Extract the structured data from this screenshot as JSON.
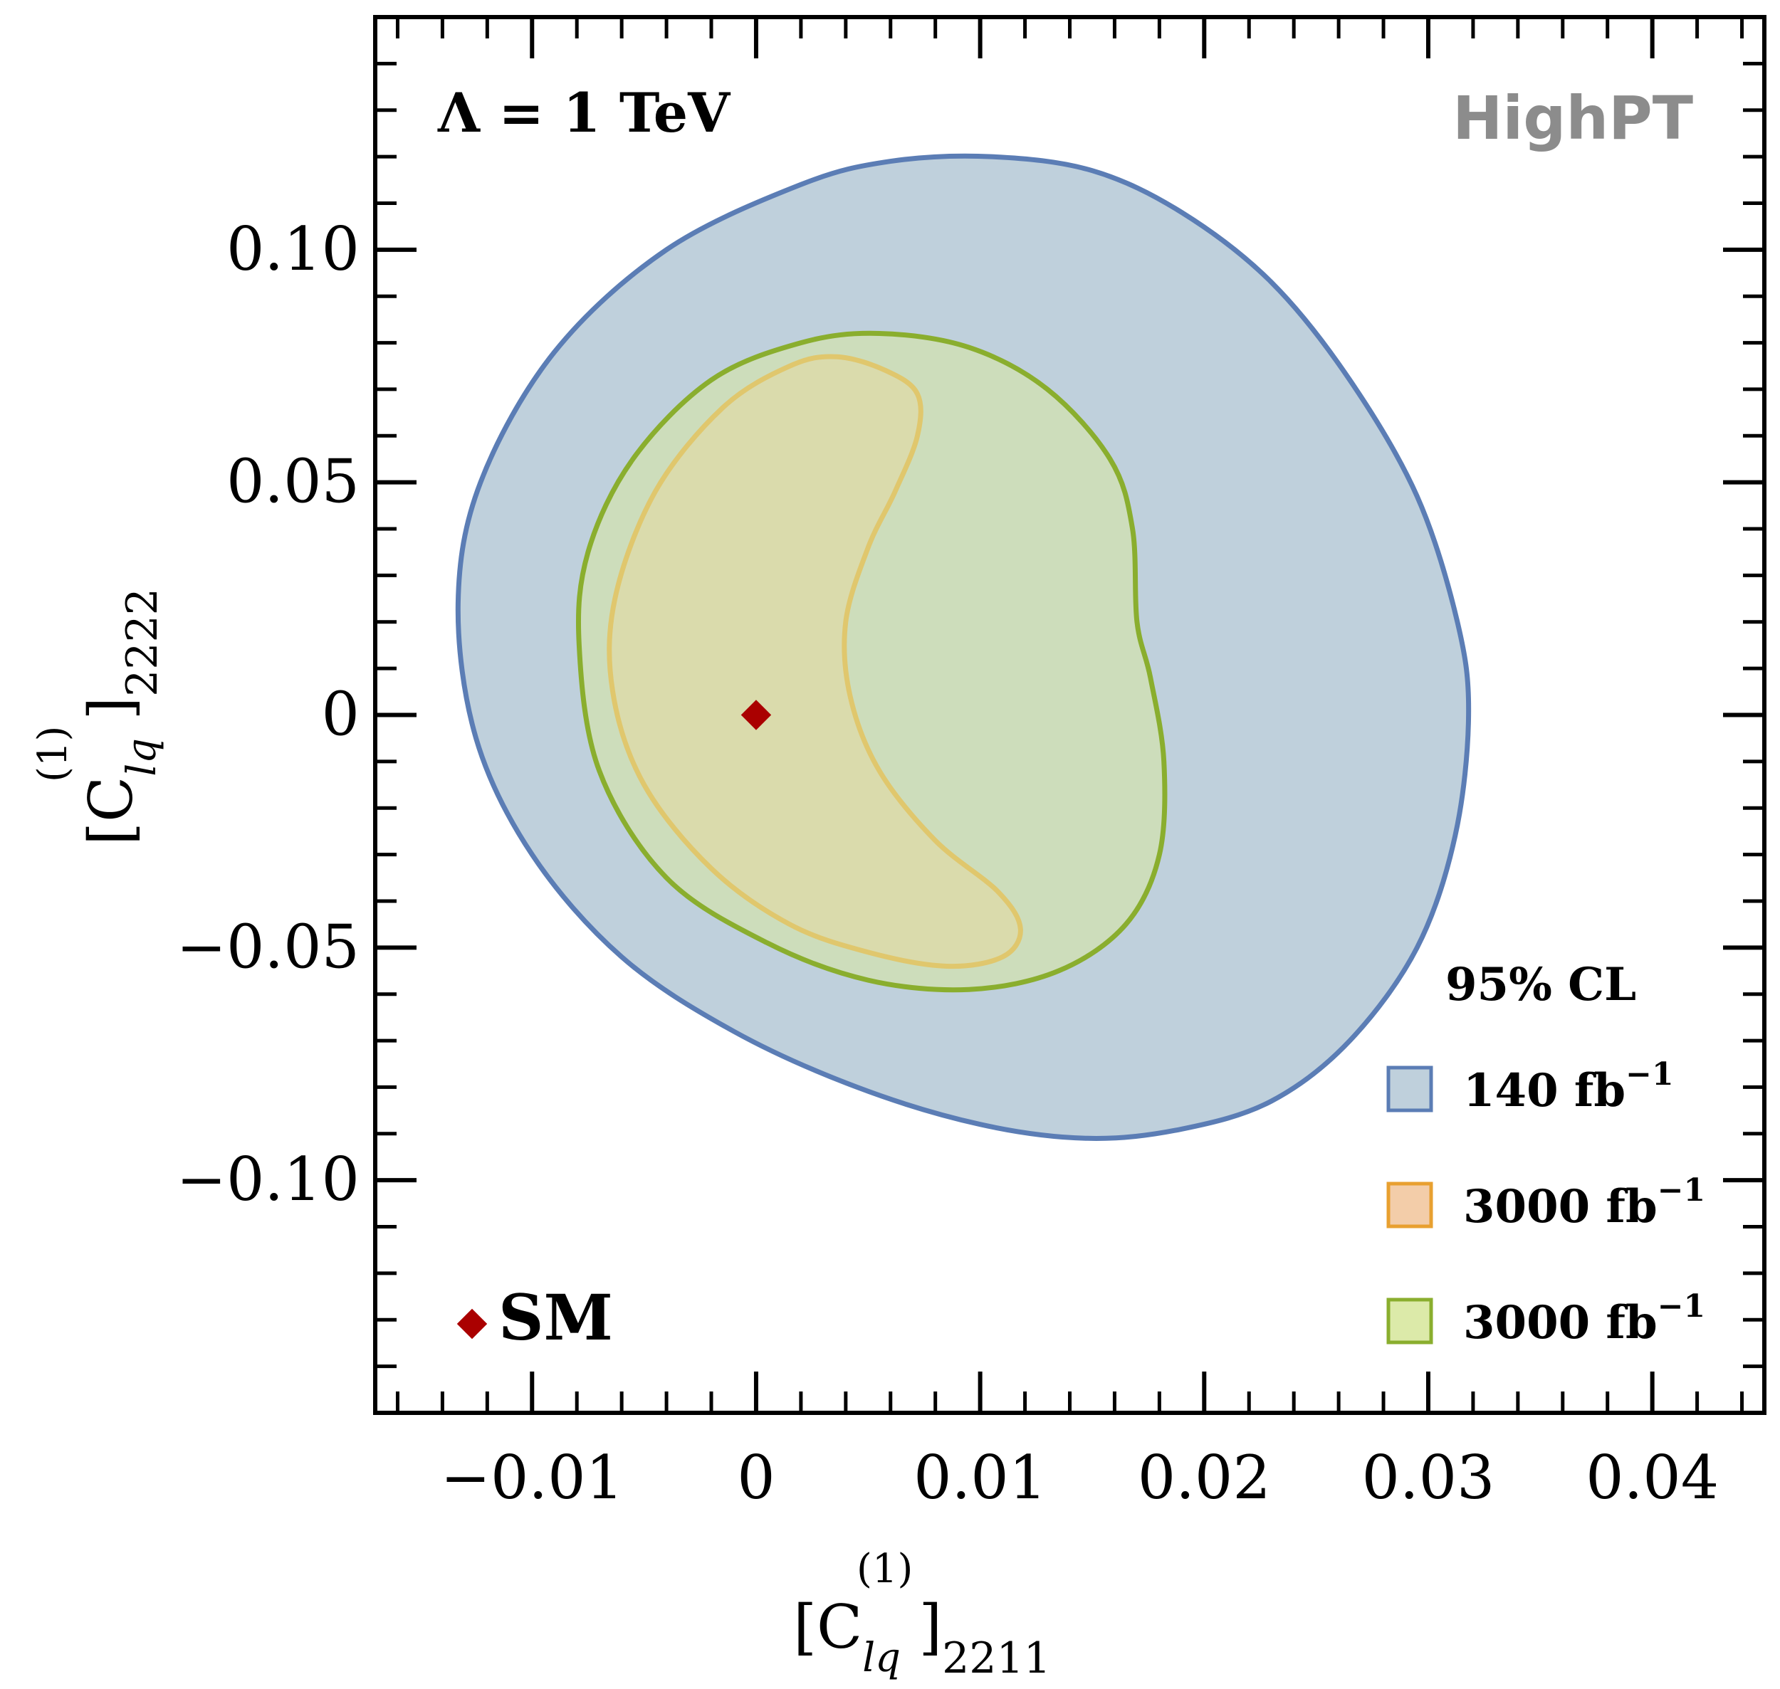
{
  "chart_data": {
    "type": "contour",
    "annotation": "Λ = 1 TeV",
    "logo": "HighPT",
    "xlabel": {
      "base": "[C",
      "sub": "lq",
      "sup": "(1)",
      "close": "]",
      "idx": "2211"
    },
    "ylabel": {
      "base": "[C",
      "sub": "lq",
      "sup": "(1)",
      "close": "]",
      "idx": "2222"
    },
    "xlim": [
      -0.017,
      0.045
    ],
    "ylim": [
      -0.15,
      0.15
    ],
    "x_ticks": [
      {
        "value": -0.01,
        "label": "−0.01"
      },
      {
        "value": 0,
        "label": "0"
      },
      {
        "value": 0.01,
        "label": "0.01"
      },
      {
        "value": 0.02,
        "label": "0.02"
      },
      {
        "value": 0.03,
        "label": "0.03"
      },
      {
        "value": 0.04,
        "label": "0.04"
      }
    ],
    "y_ticks": [
      {
        "value": 0.1,
        "label": "0.10"
      },
      {
        "value": 0.05,
        "label": "0.05"
      },
      {
        "value": 0,
        "label": "0"
      },
      {
        "value": -0.05,
        "label": "−0.05"
      },
      {
        "value": -0.1,
        "label": "−0.10"
      }
    ],
    "legend_title": "95% CL",
    "legend_position": "bottom-right",
    "series": [
      {
        "name": "140 fb⁻¹",
        "lum": "140 fb",
        "exp": "−1",
        "stroke": "#5b7db5",
        "fill": "#bfd0dc",
        "opacity": 1,
        "points": [
          [
            0.0105,
            0.12
          ],
          [
            0.015,
            0.117
          ],
          [
            0.019,
            0.108
          ],
          [
            0.023,
            0.093
          ],
          [
            0.0265,
            0.072
          ],
          [
            0.0295,
            0.047
          ],
          [
            0.0313,
            0.02
          ],
          [
            0.0318,
            0.0
          ],
          [
            0.0312,
            -0.026
          ],
          [
            0.0295,
            -0.05
          ],
          [
            0.0265,
            -0.07
          ],
          [
            0.023,
            -0.083
          ],
          [
            0.019,
            -0.089
          ],
          [
            0.0148,
            -0.091
          ],
          [
            0.01,
            -0.088
          ],
          [
            0.0045,
            -0.08
          ],
          [
            -0.001,
            -0.068
          ],
          [
            -0.006,
            -0.052
          ],
          [
            -0.01,
            -0.03
          ],
          [
            -0.0125,
            -0.005
          ],
          [
            -0.0133,
            0.024
          ],
          [
            -0.0123,
            0.05
          ],
          [
            -0.009,
            0.078
          ],
          [
            -0.004,
            0.1
          ],
          [
            0.002,
            0.114
          ],
          [
            0.006,
            0.119
          ]
        ]
      },
      {
        "name": "3000 fb⁻¹",
        "lum": "3000 fb",
        "exp": "−1",
        "stroke": "#e8a030",
        "fill": "#f2c8a0",
        "opacity": 0.55,
        "points": [
          [
            0.0036,
            0.077
          ],
          [
            0.0058,
            0.074
          ],
          [
            0.0072,
            0.069
          ],
          [
            0.0072,
            0.06
          ],
          [
            0.0062,
            0.048
          ],
          [
            0.005,
            0.036
          ],
          [
            0.004,
            0.02
          ],
          [
            0.0042,
            0.004
          ],
          [
            0.0055,
            -0.012
          ],
          [
            0.008,
            -0.027
          ],
          [
            0.0108,
            -0.038
          ],
          [
            0.0118,
            -0.046
          ],
          [
            0.011,
            -0.052
          ],
          [
            0.0085,
            -0.054
          ],
          [
            0.005,
            -0.051
          ],
          [
            0.0015,
            -0.045
          ],
          [
            -0.002,
            -0.033
          ],
          [
            -0.005,
            -0.015
          ],
          [
            -0.0064,
            0.005
          ],
          [
            -0.0063,
            0.025
          ],
          [
            -0.0045,
            0.048
          ],
          [
            -0.0015,
            0.066
          ],
          [
            0.0015,
            0.075
          ]
        ]
      },
      {
        "name": "3000 fb⁻¹",
        "lum": "3000 fb",
        "exp": "−1",
        "stroke": "#8aae2e",
        "fill": "#d8e8a0",
        "opacity": 0.55,
        "points": [
          [
            0.0055,
            0.082
          ],
          [
            0.0095,
            0.079
          ],
          [
            0.013,
            0.07
          ],
          [
            0.0158,
            0.055
          ],
          [
            0.0168,
            0.04
          ],
          [
            0.017,
            0.02
          ],
          [
            0.0176,
            0.008
          ],
          [
            0.0182,
            -0.01
          ],
          [
            0.018,
            -0.03
          ],
          [
            0.0165,
            -0.045
          ],
          [
            0.0135,
            -0.055
          ],
          [
            0.0095,
            -0.059
          ],
          [
            0.005,
            -0.057
          ],
          [
            0.0005,
            -0.049
          ],
          [
            -0.004,
            -0.035
          ],
          [
            -0.007,
            -0.012
          ],
          [
            -0.0079,
            0.015
          ],
          [
            -0.0075,
            0.035
          ],
          [
            -0.0055,
            0.055
          ],
          [
            -0.002,
            0.072
          ],
          [
            0.002,
            0.08
          ]
        ]
      }
    ],
    "reference_point": {
      "name": "SM",
      "x": 0,
      "y": 0,
      "color": "#aa0000"
    }
  }
}
